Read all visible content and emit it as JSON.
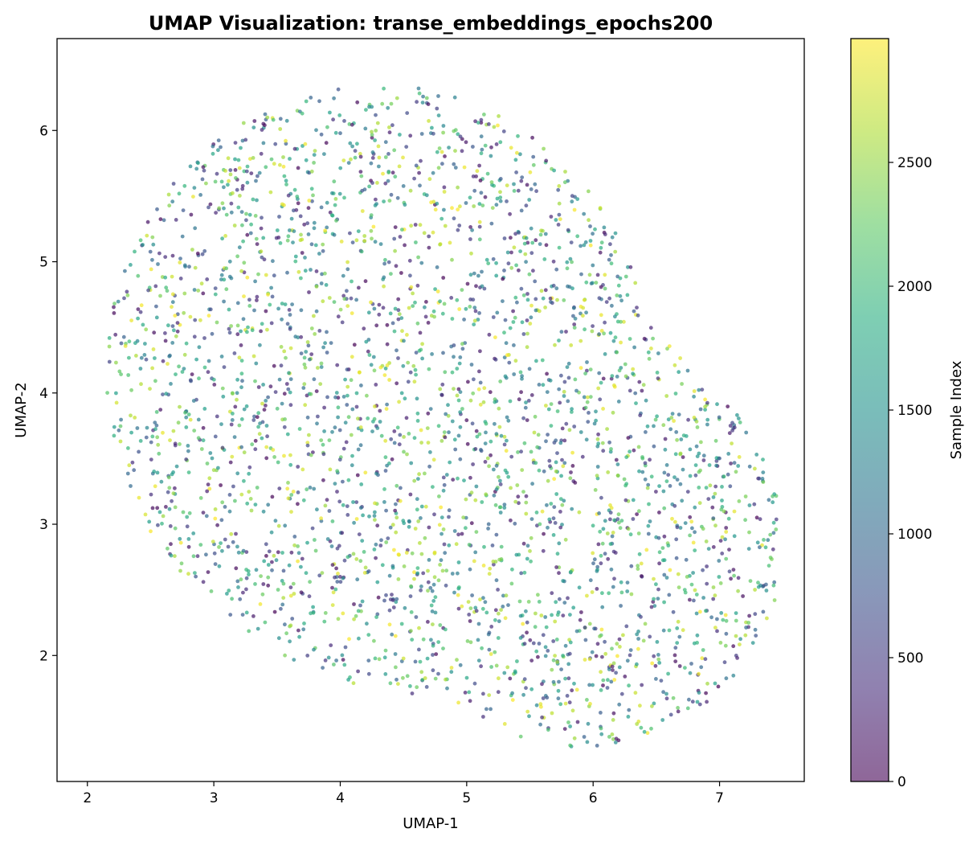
{
  "chart_data": {
    "type": "scatter",
    "title": "UMAP Visualization: transe_embeddings_epochs200",
    "xlabel": "UMAP-1",
    "ylabel": "UMAP-2",
    "xlim": [
      1.76,
      7.67
    ],
    "ylim": [
      1.04,
      6.7
    ],
    "xticks": [
      2,
      3,
      4,
      5,
      6,
      7
    ],
    "yticks": [
      2,
      3,
      4,
      5,
      6
    ],
    "grid": false,
    "colormap": "viridis",
    "marker_alpha": 0.7,
    "n_points": 3000,
    "point_generation": {
      "note": "individual point positions estimated as a cloud; color encodes sample index 0-3000",
      "seed": 42
    },
    "colorbar": {
      "label": "Sample Index",
      "range": [
        0,
        3000
      ],
      "ticks": [
        0,
        500,
        1000,
        1500,
        2000,
        2500
      ]
    }
  }
}
